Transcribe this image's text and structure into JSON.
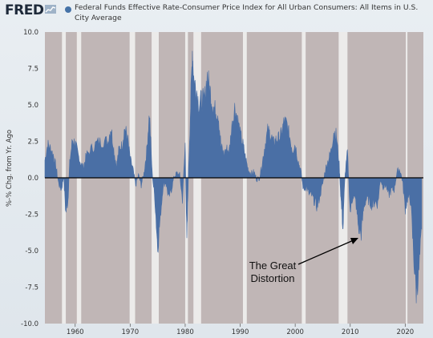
{
  "header": {
    "logo_text": "FRED",
    "logo_icon": "fred-chart-icon",
    "legend_color": "#4572a7"
  },
  "chart_data": {
    "type": "area",
    "title": "Federal Funds Effective Rate-Consumer Price Index for All Urban Consumers: All Items in U.S. City Average",
    "ylabel": "%-% Chg. from Yr. Ago",
    "xlim": [
      1954.5,
      2023.3
    ],
    "ylim": [
      -10,
      10
    ],
    "yticks": [
      10.0,
      7.5,
      5.0,
      2.5,
      0.0,
      -2.5,
      -5.0,
      -7.5,
      -10.0
    ],
    "ytick_labels": [
      "10.0",
      "7.5",
      "5.0",
      "2.5",
      "0.0",
      "-2.5",
      "-5.0",
      "-7.5",
      "-10.0"
    ],
    "xticks": [
      1960,
      1970,
      1980,
      1990,
      2000,
      2010,
      2020
    ],
    "xtick_labels": [
      "1960",
      "1970",
      "1980",
      "1990",
      "2000",
      "2010",
      "2020"
    ],
    "series_color": "#4a6fa5",
    "plot_background": "#c0b6b6",
    "recession_color": "#ecebea",
    "recessions": [
      [
        1957.6,
        1958.3
      ],
      [
        1960.3,
        1961.1
      ],
      [
        1969.9,
        1970.9
      ],
      [
        1973.9,
        1975.2
      ],
      [
        1980.0,
        1980.5
      ],
      [
        1981.5,
        1982.9
      ],
      [
        1990.5,
        1991.2
      ],
      [
        2001.2,
        2001.9
      ],
      [
        2007.9,
        2009.5
      ],
      [
        2020.1,
        2020.4
      ]
    ],
    "series": [
      {
        "x": [
          1954.5,
          1955.0,
          1955.5,
          1956.0,
          1956.5,
          1957.0,
          1957.5,
          1957.9,
          1958.3,
          1958.7,
          1959.0,
          1959.5,
          1960.0,
          1960.5,
          1961.0,
          1961.5,
          1962.0,
          1963.0,
          1964.0,
          1965.0,
          1966.0,
          1966.5,
          1967.0,
          1967.5,
          1968.0,
          1968.5,
          1969.0,
          1969.5,
          1970.0,
          1970.5,
          1971.0,
          1971.5,
          1972.0,
          1972.5,
          1973.0,
          1973.5,
          1974.0,
          1974.5,
          1975.0,
          1975.5,
          1976.0,
          1976.5,
          1977.0,
          1977.5,
          1978.0,
          1978.5,
          1979.0,
          1979.5,
          1980.0,
          1980.3,
          1980.6,
          1981.0,
          1981.3,
          1981.6,
          1982.0,
          1982.5,
          1983.0,
          1983.5,
          1984.0,
          1984.5,
          1985.0,
          1985.5,
          1986.0,
          1986.5,
          1987.0,
          1987.5,
          1988.0,
          1988.5,
          1989.0,
          1989.5,
          1990.0,
          1990.5,
          1991.0,
          1991.5,
          1992.0,
          1992.5,
          1993.0,
          1993.5,
          1994.0,
          1994.5,
          1995.0,
          1995.5,
          1996.0,
          1996.5,
          1997.0,
          1997.5,
          1998.0,
          1998.5,
          1999.0,
          1999.5,
          2000.0,
          2000.5,
          2001.0,
          2001.5,
          2002.0,
          2002.5,
          2003.0,
          2003.5,
          2004.0,
          2004.5,
          2005.0,
          2005.5,
          2006.0,
          2006.5,
          2007.0,
          2007.5,
          2008.0,
          2008.3,
          2008.7,
          2009.0,
          2009.5,
          2010.0,
          2010.5,
          2011.0,
          2011.5,
          2012.0,
          2012.5,
          2013.0,
          2013.5,
          2014.0,
          2014.5,
          2015.0,
          2015.5,
          2016.0,
          2016.5,
          2017.0,
          2017.5,
          2018.0,
          2018.5,
          2019.0,
          2019.5,
          2020.0,
          2020.5,
          2021.0,
          2021.5,
          2022.0,
          2022.5,
          2023.0
        ],
        "y": [
          1.2,
          2.3,
          2.0,
          1.6,
          0.8,
          -0.4,
          -0.8,
          0.1,
          -2.4,
          -1.5,
          1.0,
          2.6,
          2.4,
          1.6,
          1.0,
          0.7,
          1.5,
          2.0,
          2.4,
          2.5,
          2.5,
          3.5,
          2.0,
          0.8,
          2.0,
          2.2,
          3.4,
          2.8,
          1.3,
          0.6,
          -0.5,
          0.2,
          -0.5,
          0.3,
          1.8,
          4.5,
          0.3,
          -1.5,
          -4.8,
          -2.6,
          -0.5,
          -0.3,
          -1.4,
          -0.8,
          0.1,
          0.3,
          0.2,
          -1.5,
          2.3,
          -4.5,
          0.5,
          5.0,
          8.8,
          6.6,
          6.2,
          5.0,
          5.4,
          5.3,
          7.0,
          6.0,
          5.0,
          4.6,
          4.5,
          2.2,
          1.6,
          2.0,
          1.8,
          3.6,
          4.8,
          4.1,
          3.0,
          2.3,
          1.3,
          0.5,
          0.3,
          0.4,
          -0.1,
          0.0,
          1.0,
          2.2,
          3.2,
          3.0,
          2.4,
          2.6,
          2.7,
          3.0,
          3.9,
          3.6,
          2.8,
          1.9,
          2.3,
          1.2,
          0.5,
          -0.8,
          -0.6,
          -1.1,
          -1.2,
          -1.6,
          -2.0,
          -1.2,
          -0.4,
          0.6,
          1.2,
          1.8,
          3.2,
          2.9,
          0.9,
          -1.4,
          -3.5,
          -0.1,
          1.8,
          -2.4,
          -1.2,
          -1.6,
          -3.4,
          -3.8,
          -1.9,
          -1.4,
          -1.6,
          -1.9,
          -1.6,
          -1.8,
          -0.1,
          -0.6,
          -0.5,
          -1.2,
          -0.8,
          -0.8,
          0.4,
          0.6,
          -0.2,
          -2.1,
          -1.3,
          -1.6,
          -5.2,
          -7.8,
          -6.3,
          -3.5
        ]
      }
    ]
  },
  "annotation": {
    "text_line1": "The Great",
    "text_line2": "Distortion"
  }
}
